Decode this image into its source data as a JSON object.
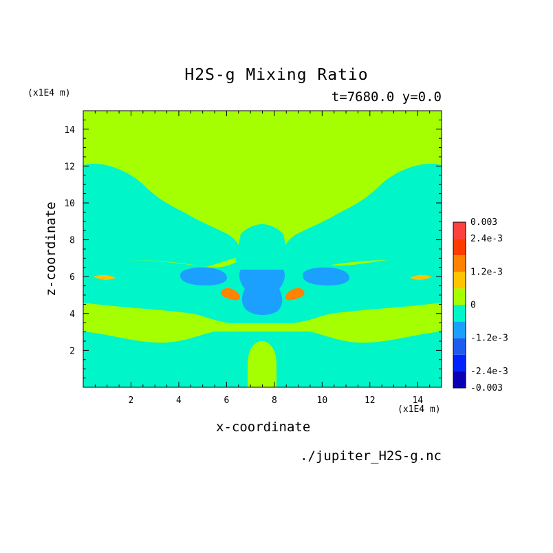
{
  "chart_data": {
    "type": "heatmap",
    "title": "H2S-g Mixing Ratio",
    "subtitle": "t=7680.0 y=0.0",
    "xlabel": "x-coordinate",
    "ylabel": "z-coordinate",
    "x_unit": "(x1E4 m)",
    "y_unit": "(x1E4 m)",
    "xlim": [
      0,
      15
    ],
    "ylim": [
      0,
      15
    ],
    "x_ticks": [
      2,
      4,
      6,
      8,
      10,
      12,
      14
    ],
    "y_ticks": [
      2,
      4,
      6,
      8,
      10,
      12,
      14
    ],
    "source": "./jupiter_H2S-g.nc",
    "colorbar": {
      "range": [
        -0.003,
        0.003
      ],
      "tick_labels": [
        "0.003",
        "2.4e-3",
        "1.2e-3",
        "0",
        "-1.2e-3",
        "-2.4e-3",
        "-0.003"
      ],
      "levels": [
        {
          "from": -0.003,
          "to": -0.0024,
          "color": "#0a00b4"
        },
        {
          "from": -0.0024,
          "to": -0.0018,
          "color": "#0022ff"
        },
        {
          "from": -0.0018,
          "to": -0.0012,
          "color": "#1e5cf0"
        },
        {
          "from": -0.0012,
          "to": -0.0006,
          "color": "#1ca0ff"
        },
        {
          "from": -0.0006,
          "to": 0.0,
          "color": "#00f5c8"
        },
        {
          "from": 0.0,
          "to": 0.0006,
          "color": "#a6ff00"
        },
        {
          "from": 0.0006,
          "to": 0.0012,
          "color": "#ffc400"
        },
        {
          "from": 0.0012,
          "to": 0.0018,
          "color": "#ff8200"
        },
        {
          "from": 0.0018,
          "to": 0.0024,
          "color": "#ff3c00"
        },
        {
          "from": 0.0024,
          "to": 0.003,
          "color": "#ff4040"
        }
      ]
    },
    "regions": [
      {
        "level": "positive",
        "color": "#a6ff00",
        "description_value": "0 to 6e-4"
      },
      {
        "level": "negative",
        "color": "#00f5c8",
        "description_value": "-6e-4 to 0"
      },
      {
        "level": "strong-negative",
        "color": "#1ca0ff",
        "description_value": "-1.2e-3 to -6e-4"
      },
      {
        "level": "strong-positive",
        "color": "#ff8200",
        "description_value": "1.2e-3 to 1.8e-3"
      }
    ]
  }
}
